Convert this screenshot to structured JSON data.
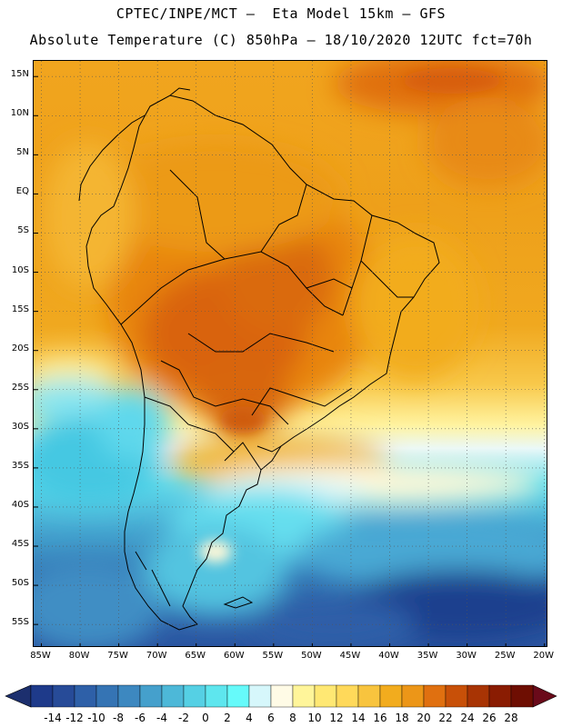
{
  "header": {
    "title_line1": "CPTEC/INPE/MCT –  Eta Model 15km – GFS",
    "title_line2": "Absolute Temperature (C) 850hPa – 18/10/2020 12UTC fct=70h"
  },
  "map": {
    "lat_labels": [
      "15N",
      "10N",
      "5N",
      "EQ",
      "5S",
      "10S",
      "15S",
      "20S",
      "25S",
      "30S",
      "35S",
      "40S",
      "45S",
      "50S",
      "55S"
    ],
    "lat_values": [
      15,
      10,
      5,
      0,
      -5,
      -10,
      -15,
      -20,
      -25,
      -30,
      -35,
      -40,
      -45,
      -50,
      -55
    ],
    "lon_labels": [
      "85W",
      "80W",
      "75W",
      "70W",
      "65W",
      "60W",
      "55W",
      "50W",
      "45W",
      "40W",
      "35W",
      "30W",
      "25W",
      "20W"
    ],
    "lon_values": [
      -85,
      -80,
      -75,
      -70,
      -65,
      -60,
      -55,
      -50,
      -45,
      -40,
      -35,
      -30,
      -25,
      -20
    ],
    "extent": {
      "lon_min": -86,
      "lon_max": -19.5,
      "lat_min": -58,
      "lat_max": 17
    }
  },
  "colorbar": {
    "labels": [
      "-14",
      "-12",
      "-10",
      "-8",
      "-6",
      "-4",
      "-2",
      "0",
      "2",
      "4",
      "6",
      "8",
      "10",
      "12",
      "14",
      "16",
      "18",
      "20",
      "22",
      "24",
      "26",
      "28"
    ],
    "colors": [
      "#1e3a8a",
      "#274b98",
      "#2e60a8",
      "#3574b4",
      "#3d88c0",
      "#45a0cc",
      "#4db8d8",
      "#55d0e4",
      "#5ee6ee",
      "#66fafa",
      "#d6f7fb",
      "#fffbe6",
      "#fff59a",
      "#ffe873",
      "#ffd95a",
      "#f8c43e",
      "#f2ac1e",
      "#ec9618",
      "#e07010",
      "#c85008",
      "#a83404",
      "#8a1c02",
      "#6e0e02"
    ],
    "arrow_left_color": "#1c2f6e",
    "arrow_right_color": "#6a0a1a"
  }
}
